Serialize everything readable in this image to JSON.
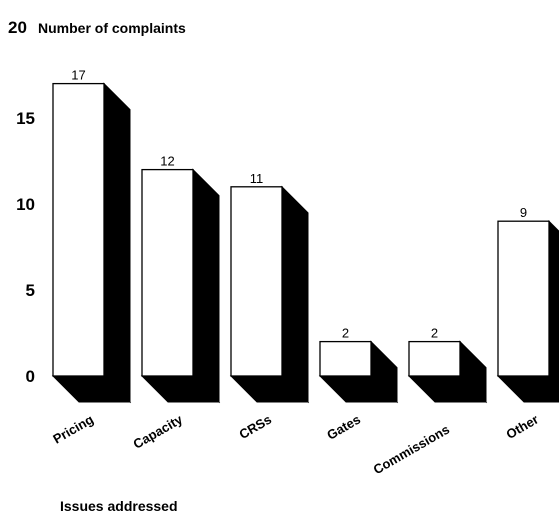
{
  "chart_data": {
    "type": "bar",
    "categories": [
      "Pricing",
      "Capacity",
      "CRSs",
      "Gates",
      "Commissions",
      "Other"
    ],
    "values": [
      17,
      12,
      11,
      2,
      2,
      9
    ],
    "data_labels": [
      "17",
      "12",
      "11",
      "2",
      "2",
      "9"
    ],
    "ylabel": "Number of complaints",
    "xlabel": "Issues addressed",
    "ylim": [
      0,
      20
    ],
    "yticks": [
      "0",
      "5",
      "10",
      "15",
      "20"
    ],
    "style": "3d",
    "bar_color": "#ffffff",
    "depth_color": "#000000",
    "grid": false,
    "legend": "none"
  }
}
